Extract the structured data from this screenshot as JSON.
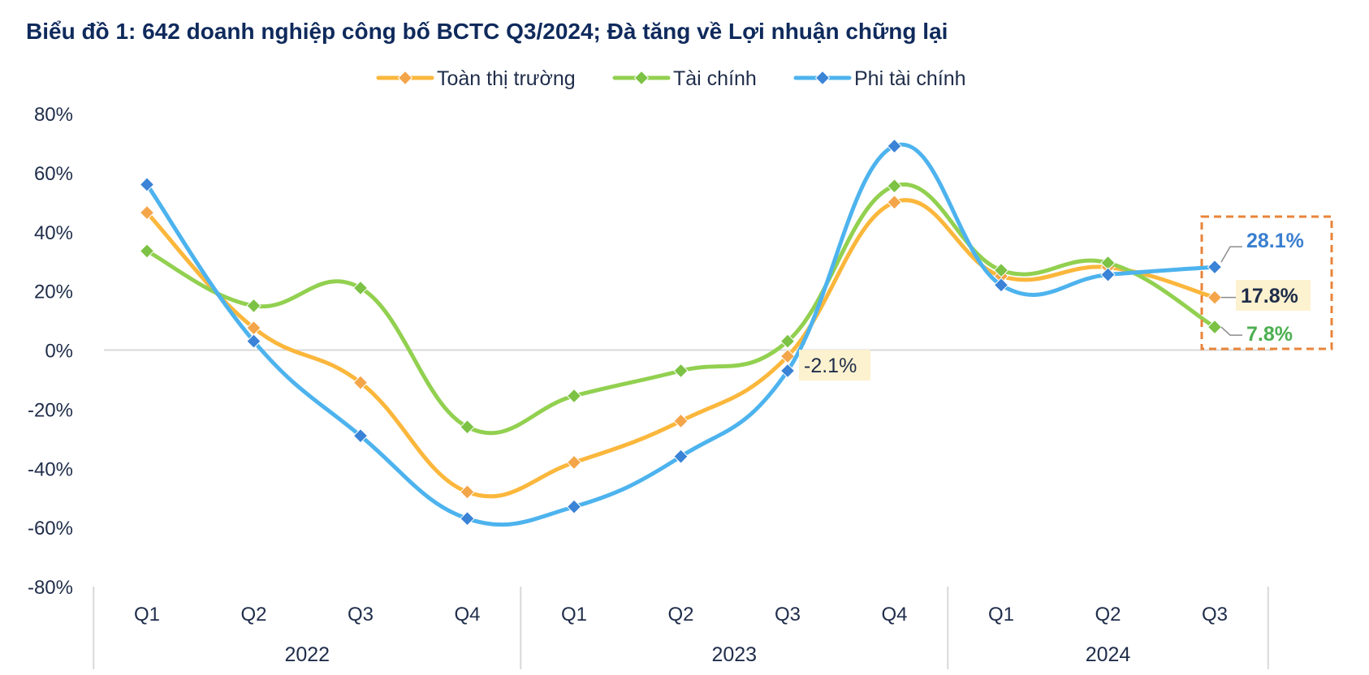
{
  "chart_data": {
    "type": "line",
    "title": "Biểu đồ 1: 642 doanh nghiệp công bố BCTC Q3/2024; Đà tăng về Lợi nhuận chững lại",
    "categories": [
      "Q1",
      "Q2",
      "Q3",
      "Q4",
      "Q1",
      "Q2",
      "Q3",
      "Q4",
      "Q1",
      "Q2",
      "Q3"
    ],
    "groups": [
      {
        "label": "2022",
        "count": 4
      },
      {
        "label": "2023",
        "count": 4
      },
      {
        "label": "2024",
        "count": 3
      }
    ],
    "ylim": [
      -80,
      80
    ],
    "yticks": [
      80,
      60,
      40,
      20,
      0,
      -20,
      -40,
      -60,
      -80
    ],
    "ytick_labels": [
      "80%",
      "60%",
      "40%",
      "20%",
      "0%",
      "-20%",
      "-40%",
      "-60%",
      "-80%"
    ],
    "legend_position": "top-center",
    "series": [
      {
        "name": "Toàn thị trường",
        "color": "#fbb73c",
        "marker_color": "#f4a54a",
        "values": [
          46.5,
          7.5,
          -11,
          -48,
          -38,
          -24,
          -2.1,
          50,
          25,
          28,
          17.8
        ]
      },
      {
        "name": "Tài chính",
        "color": "#92d050",
        "marker_color": "#7cc245",
        "values": [
          33.5,
          15,
          21,
          -26,
          -15.5,
          -7,
          3,
          55.5,
          27,
          29.5,
          7.8
        ]
      },
      {
        "name": "Phi tài chính",
        "color": "#4db3ee",
        "marker_color": "#3a83d6",
        "values": [
          56,
          3,
          -29,
          -57,
          -53,
          -36,
          -7,
          69,
          22,
          25.5,
          28.1
        ]
      }
    ],
    "callouts": [
      {
        "series": "Toàn thị trường",
        "index": 6,
        "text": "-2.1%",
        "highlight": true,
        "color": "#1f2d4a"
      },
      {
        "series": "Phi tài chính",
        "index": 10,
        "text": "28.1%",
        "highlight": false,
        "color": "#3a7fd0"
      },
      {
        "series": "Toàn thị trường",
        "index": 10,
        "text": "17.8%",
        "highlight": true,
        "color": "#1f2d4a"
      },
      {
        "series": "Tài chính",
        "index": 10,
        "text": "7.8%",
        "highlight": false,
        "color": "#4caf50"
      }
    ],
    "highlight_box_color": "#e8843a",
    "zero_line_color": "#d9d9d9"
  }
}
